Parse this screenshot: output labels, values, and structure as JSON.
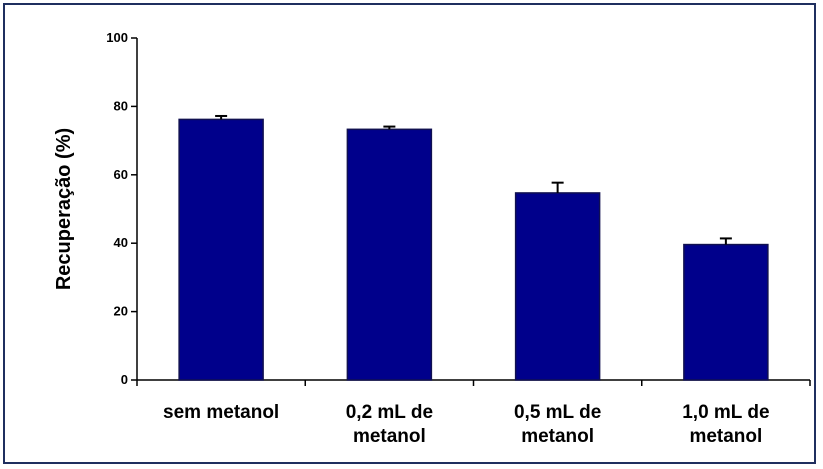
{
  "chart_data": {
    "type": "bar",
    "title": "",
    "xlabel": "",
    "ylabel": "Recuperação (%)",
    "ylim": [
      0,
      100
    ],
    "yticks": [
      0,
      20,
      40,
      60,
      80,
      100
    ],
    "categories": [
      [
        "sem metanol"
      ],
      [
        "0,2 mL de",
        "metanol"
      ],
      [
        "0,5 mL de",
        "metanol"
      ],
      [
        "1,0 mL de",
        "metanol"
      ]
    ],
    "values": [
      76.2,
      73.3,
      54.7,
      39.6
    ],
    "errors": [
      1.0,
      0.8,
      3.0,
      1.8
    ],
    "bar_color": "#00008b",
    "bar_edge_color": "#101050",
    "grid": false,
    "legend": "none"
  }
}
